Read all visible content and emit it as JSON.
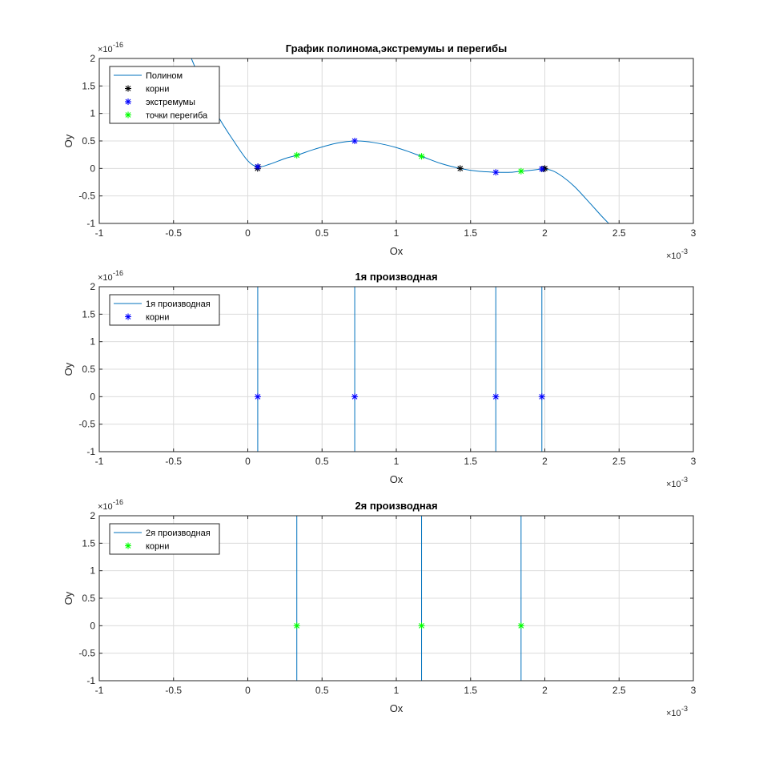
{
  "figure": {
    "background": "#ffffff"
  },
  "colors": {
    "line": "#0072bd",
    "grid": "#dcdcdc",
    "axis": "#262626",
    "roots_black": "#000000",
    "extrema_blue": "#0000ff",
    "inflection_green": "#00ff00"
  },
  "chart_data": [
    {
      "type": "line",
      "title": "График полинома,экстремумы и перегибы",
      "xlabel": "Ox",
      "ylabel": "Oy",
      "xlim": [
        -1,
        3
      ],
      "ylim": [
        -1,
        2
      ],
      "x_exponent_label": "×10",
      "x_exponent_power": "-3",
      "y_exponent_label": "×10",
      "y_exponent_power": "-16",
      "grid": true,
      "legend_position": "top-left",
      "xticks": [
        -1,
        -0.5,
        0,
        0.5,
        1,
        1.5,
        2,
        2.5,
        3
      ],
      "xtick_labels": [
        "-1",
        "-0.5",
        "0",
        "0.5",
        "1",
        "1.5",
        "2",
        "2.5",
        "3"
      ],
      "yticks": [
        -1,
        -0.5,
        0,
        0.5,
        1,
        1.5,
        2
      ],
      "ytick_labels": [
        "-1",
        "-0.5",
        "0",
        "0.5",
        "1",
        "1.5",
        "2"
      ],
      "series": [
        {
          "name": "Полином",
          "kind": "curve",
          "color": "#0072bd",
          "x": [
            -0.38,
            -0.3,
            -0.2,
            -0.1,
            0.0,
            0.07,
            0.15,
            0.25,
            0.33,
            0.45,
            0.6,
            0.73,
            0.85,
            1.0,
            1.17,
            1.3,
            1.43,
            1.55,
            1.68,
            1.77,
            1.84,
            1.92,
            1.99,
            2.05,
            2.12,
            2.2,
            2.3,
            2.38,
            2.43
          ],
          "y": [
            2.0,
            1.5,
            0.95,
            0.52,
            0.14,
            0.03,
            0.08,
            0.18,
            0.24,
            0.35,
            0.46,
            0.5,
            0.47,
            0.38,
            0.22,
            0.09,
            0.0,
            -0.05,
            -0.07,
            -0.07,
            -0.05,
            -0.03,
            -0.01,
            -0.04,
            -0.15,
            -0.33,
            -0.62,
            -0.86,
            -1.0
          ]
        },
        {
          "name": "корни",
          "kind": "marker",
          "color": "#000000",
          "x": [
            0.066,
            0.069,
            1.43,
            1.99,
            2.0
          ],
          "y": [
            0.0,
            0.03,
            0.0,
            -0.01,
            0.0
          ]
        },
        {
          "name": "экстремумы",
          "kind": "marker",
          "color": "#0000ff",
          "x": [
            0.067,
            0.72,
            1.67,
            1.98
          ],
          "y": [
            0.03,
            0.5,
            -0.07,
            -0.01
          ]
        },
        {
          "name": "точки перегиба",
          "kind": "marker",
          "color": "#00ff00",
          "x": [
            0.33,
            1.17,
            1.84
          ],
          "y": [
            0.24,
            0.22,
            -0.05
          ]
        }
      ]
    },
    {
      "type": "line",
      "title": "1я производная",
      "xlabel": "Ox",
      "ylabel": "Oy",
      "xlim": [
        -1,
        3
      ],
      "ylim": [
        -1,
        2
      ],
      "x_exponent_label": "×10",
      "x_exponent_power": "-3",
      "y_exponent_label": "×10",
      "y_exponent_power": "-16",
      "grid": true,
      "legend_position": "top-left",
      "xticks": [
        -1,
        -0.5,
        0,
        0.5,
        1,
        1.5,
        2,
        2.5,
        3
      ],
      "xtick_labels": [
        "-1",
        "-0.5",
        "0",
        "0.5",
        "1",
        "1.5",
        "2",
        "2.5",
        "3"
      ],
      "yticks": [
        -1,
        -0.5,
        0,
        0.5,
        1,
        1.5,
        2
      ],
      "ytick_labels": [
        "-1",
        "-0.5",
        "0",
        "0.5",
        "1",
        "1.5",
        "2"
      ],
      "series": [
        {
          "name": "1я производная",
          "kind": "vlines",
          "color": "#0072bd",
          "x": [
            0.067,
            0.72,
            1.67,
            1.98
          ]
        },
        {
          "name": "корни",
          "kind": "marker",
          "color": "#0000ff",
          "x": [
            0.067,
            0.72,
            1.67,
            1.98
          ],
          "y": [
            0,
            0,
            0,
            0
          ]
        }
      ]
    },
    {
      "type": "line",
      "title": "2я производная",
      "xlabel": "Ox",
      "ylabel": "Oy",
      "xlim": [
        -1,
        3
      ],
      "ylim": [
        -1,
        2
      ],
      "x_exponent_label": "×10",
      "x_exponent_power": "-3",
      "y_exponent_label": "×10",
      "y_exponent_power": "-16",
      "grid": true,
      "legend_position": "top-left",
      "xticks": [
        -1,
        -0.5,
        0,
        0.5,
        1,
        1.5,
        2,
        2.5,
        3
      ],
      "xtick_labels": [
        "-1",
        "-0.5",
        "0",
        "0.5",
        "1",
        "1.5",
        "2",
        "2.5",
        "3"
      ],
      "yticks": [
        -1,
        -0.5,
        0,
        0.5,
        1,
        1.5,
        2
      ],
      "ytick_labels": [
        "-1",
        "-0.5",
        "0",
        "0.5",
        "1",
        "1.5",
        "2"
      ],
      "series": [
        {
          "name": "2я производная",
          "kind": "vlines",
          "color": "#0072bd",
          "x": [
            0.33,
            1.17,
            1.84
          ]
        },
        {
          "name": "корни",
          "kind": "marker",
          "color": "#00ff00",
          "x": [
            0.33,
            1.17,
            1.84
          ],
          "y": [
            0,
            0,
            0
          ]
        }
      ]
    }
  ]
}
